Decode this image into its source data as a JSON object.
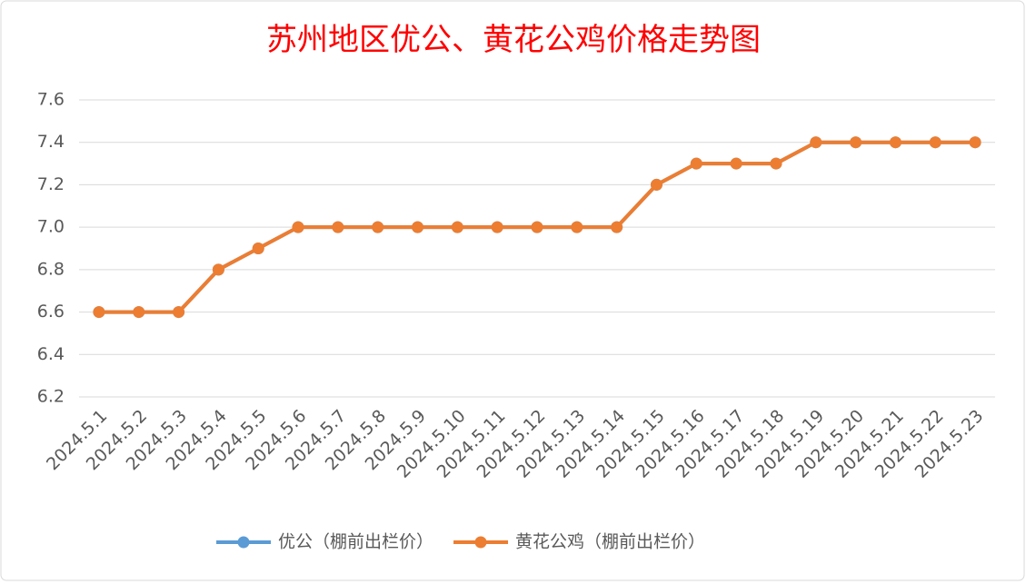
{
  "chart_data": {
    "type": "line",
    "title": "苏州地区优公、黄花公鸡价格走势图",
    "categories": [
      "2024.5.1",
      "2024.5.2",
      "2024.5.3",
      "2024.5.4",
      "2024.5.5",
      "2024.5.6",
      "2024.5.7",
      "2024.5.8",
      "2024.5.9",
      "2024.5.10",
      "2024.5.11",
      "2024.5.12",
      "2024.5.13",
      "2024.5.14",
      "2024.5.15",
      "2024.5.16",
      "2024.5.17",
      "2024.5.18",
      "2024.5.19",
      "2024.5.20",
      "2024.5.21",
      "2024.5.22",
      "2024.5.23"
    ],
    "series": [
      {
        "name": "优公（棚前出栏价）",
        "color": "#5b9bd5",
        "values": [
          6.6,
          6.6,
          6.6,
          6.8,
          6.9,
          7.0,
          7.0,
          7.0,
          7.0,
          7.0,
          7.0,
          7.0,
          7.0,
          7.0,
          7.2,
          7.3,
          7.3,
          7.3,
          7.4,
          7.4,
          7.4,
          7.4,
          7.4
        ]
      },
      {
        "name": "黄花公鸡（棚前出栏价）",
        "color": "#ed7d31",
        "values": [
          6.6,
          6.6,
          6.6,
          6.8,
          6.9,
          7.0,
          7.0,
          7.0,
          7.0,
          7.0,
          7.0,
          7.0,
          7.0,
          7.0,
          7.2,
          7.3,
          7.3,
          7.3,
          7.4,
          7.4,
          7.4,
          7.4,
          7.4
        ]
      }
    ],
    "ylim": [
      6.2,
      7.6
    ],
    "yticks": [
      6.2,
      6.4,
      6.6,
      6.8,
      {
        "value": 7,
        "label": "7.0"
      },
      7.2,
      7.4,
      7.6
    ],
    "grid": true,
    "legend": "bottom"
  }
}
